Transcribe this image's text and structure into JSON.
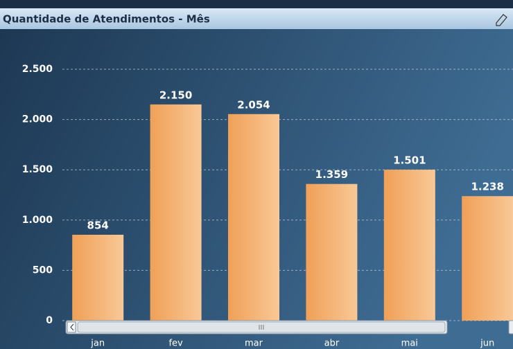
{
  "chart_data": {
    "type": "bar",
    "title": "Quantidade de Atendimentos - Mês",
    "categories": [
      "jan",
      "fev",
      "mar",
      "abr",
      "mai",
      "jun"
    ],
    "values": [
      854,
      2150,
      2054,
      1359,
      1501,
      1238
    ],
    "value_labels": [
      "854",
      "2.150",
      "2.054",
      "1.359",
      "1.501",
      "1.238"
    ],
    "color": "#f2a662",
    "ylim": [
      0,
      2500
    ],
    "yticks": [
      0,
      500,
      {
        "value": 1000,
        "label": "1.000"
      },
      {
        "value": 1500,
        "label": "1.500"
      },
      {
        "value": 2000,
        "label": "2.000"
      },
      {
        "value": 2500,
        "label": "2.500"
      }
    ],
    "grid": true
  }
}
